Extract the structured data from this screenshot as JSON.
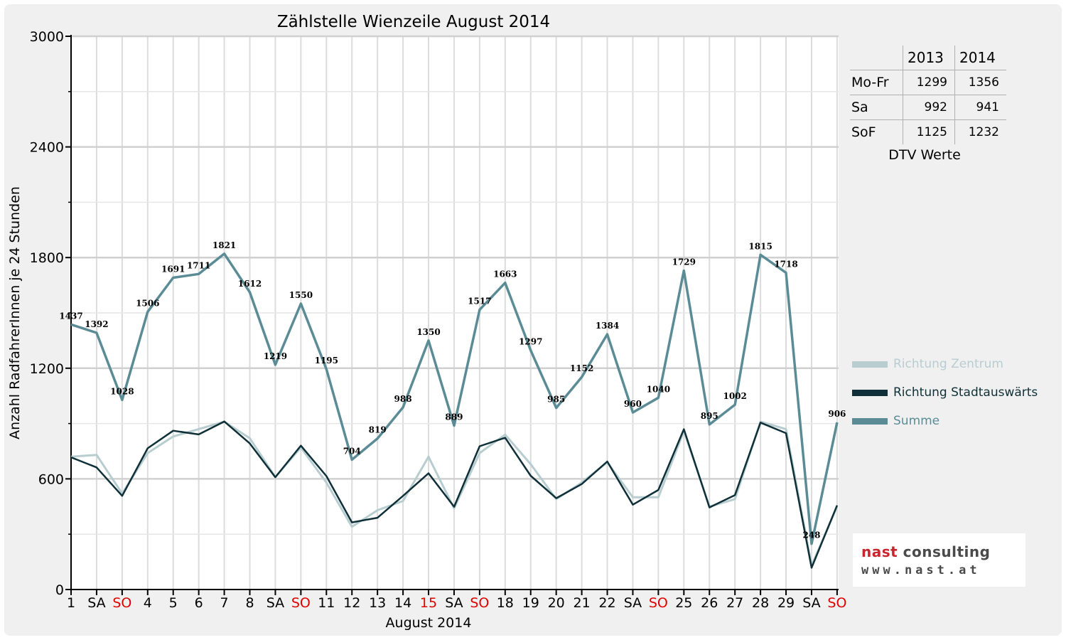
{
  "chart_data": {
    "type": "line",
    "title": "Zählstelle Wienzeile August 2014",
    "xlabel": "August 2014",
    "ylabel": "Anzahl RadfahrerInnen je 24 Stunden",
    "ylim": [
      0,
      3000
    ],
    "yticks": [
      0,
      600,
      1200,
      1800,
      2400,
      3000
    ],
    "grid": true,
    "legend_position": "right",
    "categories": [
      "1",
      "SA",
      "SO",
      "4",
      "5",
      "6",
      "7",
      "8",
      "SA",
      "SO",
      "11",
      "12",
      "13",
      "14",
      "15",
      "SA",
      "SO",
      "18",
      "19",
      "20",
      "21",
      "22",
      "SA",
      "SO",
      "25",
      "26",
      "27",
      "28",
      "29",
      "SA",
      "SO"
    ],
    "highlight_categories": [
      2,
      9,
      14,
      16,
      23,
      30
    ],
    "highlight_color": "#e00000",
    "series": [
      {
        "name": "Richtung Zentrum",
        "color": "#b7cdd0",
        "values": [
          720,
          730,
          520,
          740,
          830,
          870,
          910,
          820,
          610,
          770,
          580,
          340,
          430,
          480,
          720,
          440,
          740,
          840,
          680,
          490,
          580,
          690,
          500,
          500,
          860,
          450,
          490,
          910,
          870,
          130,
          450
        ]
      },
      {
        "name": "Richtung Stadtauswärts",
        "color": "#0f3038",
        "values": [
          717,
          662,
          508,
          766,
          861,
          841,
          911,
          792,
          609,
          780,
          615,
          364,
          389,
          508,
          630,
          449,
          777,
          823,
          617,
          495,
          572,
          694,
          460,
          540,
          869,
          445,
          512,
          905,
          848,
          118,
          456
        ]
      },
      {
        "name": "Summe",
        "color": "#5b8c96",
        "values": [
          1437,
          1392,
          1028,
          1506,
          1691,
          1711,
          1821,
          1612,
          1219,
          1550,
          1195,
          704,
          819,
          988,
          1350,
          889,
          1517,
          1663,
          1297,
          985,
          1152,
          1384,
          960,
          1040,
          1729,
          895,
          1002,
          1815,
          1718,
          248,
          906
        ]
      }
    ],
    "data_labels": [
      1437,
      1392,
      1028,
      1506,
      1691,
      1711,
      1821,
      1612,
      1219,
      1550,
      1195,
      704,
      819,
      988,
      1350,
      889,
      1517,
      1663,
      1297,
      985,
      1152,
      1384,
      960,
      1040,
      1729,
      895,
      1002,
      1815,
      1718,
      248,
      906
    ]
  },
  "dtv_table": {
    "headers": [
      "2013",
      "2014"
    ],
    "rows": [
      {
        "label": "Mo-Fr",
        "v2013": "1299",
        "v2014": "1356"
      },
      {
        "label": "Sa",
        "v2013": "992",
        "v2014": "941"
      },
      {
        "label": "SoF",
        "v2013": "1125",
        "v2014": "1232"
      }
    ],
    "caption": "DTV Werte"
  },
  "logo": {
    "brand_part1": "nast",
    "brand_part2": " consulting",
    "url": "www.nast.at",
    "colors": {
      "accent": "#c8262c",
      "text": "#4a4a4a"
    }
  }
}
